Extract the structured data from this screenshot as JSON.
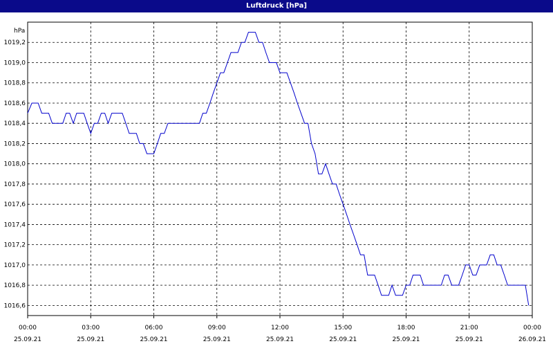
{
  "window": {
    "title": "Luftdruck [hPa]",
    "titlebar_color": "#0a0a8a"
  },
  "chart_data": {
    "type": "line",
    "title": "Luftdruck [hPa]",
    "ylabel": "hPa",
    "xlabel": "",
    "ylim": [
      1016.5,
      1019.4
    ],
    "xlim": [
      0,
      24
    ],
    "grid": true,
    "line_color": "#0000cc",
    "y_ticks": [
      "1016,6",
      "1016,8",
      "1017,0",
      "1017,2",
      "1017,4",
      "1017,6",
      "1017,8",
      "1018,0",
      "1018,2",
      "1018,4",
      "1018,6",
      "1018,8",
      "1019,0",
      "1019,2"
    ],
    "y_tick_values": [
      1016.6,
      1016.8,
      1017.0,
      1017.2,
      1017.4,
      1017.6,
      1017.8,
      1018.0,
      1018.2,
      1018.4,
      1018.6,
      1018.8,
      1019.0,
      1019.2
    ],
    "x_ticks": [
      {
        "time": "00:00",
        "date": "25.09.21"
      },
      {
        "time": "03:00",
        "date": "25.09.21"
      },
      {
        "time": "06:00",
        "date": "25.09.21"
      },
      {
        "time": "09:00",
        "date": "25.09.21"
      },
      {
        "time": "12:00",
        "date": "25.09.21"
      },
      {
        "time": "15:00",
        "date": "25.09.21"
      },
      {
        "time": "18:00",
        "date": "25.09.21"
      },
      {
        "time": "21:00",
        "date": "25.09.21"
      },
      {
        "time": "00:00",
        "date": "26.09.21"
      }
    ],
    "x_tick_values": [
      0,
      3,
      6,
      9,
      12,
      15,
      18,
      21,
      24
    ],
    "series": [
      {
        "x": [
          0,
          0.2,
          0.5,
          0.67,
          0.83,
          1.0,
          1.17,
          1.33,
          1.5,
          1.67,
          1.83,
          2.0,
          2.17,
          2.33,
          2.5,
          2.67,
          2.83,
          3.0,
          3.17,
          3.33,
          3.5,
          3.67,
          3.83,
          4.0,
          4.17,
          4.33,
          4.5,
          4.67,
          4.83,
          5.0,
          5.17,
          5.33,
          5.5,
          5.67,
          5.83,
          6.0,
          6.17,
          6.33,
          6.5,
          6.67,
          6.83,
          7.0,
          7.5,
          8.0,
          8.17,
          8.33,
          8.5,
          8.67,
          8.83,
          9.0,
          9.17,
          9.33,
          9.5,
          9.67,
          9.83,
          10.0,
          10.17,
          10.33,
          10.5,
          10.67,
          10.83,
          11.0,
          11.17,
          11.33,
          11.5,
          11.67,
          11.83,
          12.0,
          12.17,
          12.33,
          12.5,
          12.67,
          12.83,
          13.0,
          13.17,
          13.33,
          13.5,
          13.67,
          13.83,
          14.0,
          14.17,
          14.33,
          14.5,
          14.67,
          14.83,
          15.0,
          15.17,
          15.33,
          15.5,
          15.67,
          15.83,
          16.0,
          16.17,
          16.33,
          16.5,
          16.67,
          16.83,
          17.0,
          17.17,
          17.33,
          17.5,
          17.67,
          17.83,
          18.0,
          18.17,
          18.33,
          18.5,
          18.67,
          18.83,
          19.0,
          19.17,
          19.33,
          19.5,
          19.67,
          19.83,
          20.0,
          20.17,
          20.33,
          20.5,
          20.67,
          20.83,
          21.0,
          21.17,
          21.33,
          21.5,
          21.67,
          21.83,
          22.0,
          22.17,
          22.33,
          22.5,
          22.67,
          22.83,
          23.0,
          23.17,
          23.33,
          23.5,
          23.67,
          23.83
        ],
        "values": [
          1018.5,
          1018.6,
          1018.6,
          1018.5,
          1018.5,
          1018.5,
          1018.4,
          1018.4,
          1018.4,
          1018.4,
          1018.5,
          1018.5,
          1018.4,
          1018.5,
          1018.5,
          1018.5,
          1018.4,
          1018.3,
          1018.4,
          1018.4,
          1018.5,
          1018.5,
          1018.4,
          1018.5,
          1018.5,
          1018.5,
          1018.5,
          1018.4,
          1018.3,
          1018.3,
          1018.3,
          1018.2,
          1018.2,
          1018.1,
          1018.1,
          1018.1,
          1018.2,
          1018.3,
          1018.3,
          1018.4,
          1018.4,
          1018.4,
          1018.4,
          1018.4,
          1018.4,
          1018.5,
          1018.5,
          1018.6,
          1018.7,
          1018.8,
          1018.9,
          1018.9,
          1019.0,
          1019.1,
          1019.1,
          1019.1,
          1019.2,
          1019.2,
          1019.3,
          1019.3,
          1019.3,
          1019.2,
          1019.2,
          1019.1,
          1019.0,
          1019.0,
          1019.0,
          1018.9,
          1018.9,
          1018.9,
          1018.8,
          1018.7,
          1018.6,
          1018.5,
          1018.4,
          1018.4,
          1018.2,
          1018.1,
          1017.9,
          1017.9,
          1018.0,
          1017.9,
          1017.8,
          1017.8,
          1017.7,
          1017.6,
          1017.5,
          1017.4,
          1017.3,
          1017.2,
          1017.1,
          1017.1,
          1016.9,
          1016.9,
          1016.9,
          1016.8,
          1016.7,
          1016.7,
          1016.7,
          1016.8,
          1016.7,
          1016.7,
          1016.7,
          1016.8,
          1016.8,
          1016.9,
          1016.9,
          1016.9,
          1016.8,
          1016.8,
          1016.8,
          1016.8,
          1016.8,
          1016.8,
          1016.9,
          1016.9,
          1016.8,
          1016.8,
          1016.8,
          1016.9,
          1017.0,
          1017.0,
          1016.9,
          1016.9,
          1017.0,
          1017.0,
          1017.0,
          1017.1,
          1017.1,
          1017.0,
          1017.0,
          1016.9,
          1016.8,
          1016.8,
          1016.8,
          1016.8,
          1016.8,
          1016.8,
          1016.6
        ]
      }
    ]
  }
}
